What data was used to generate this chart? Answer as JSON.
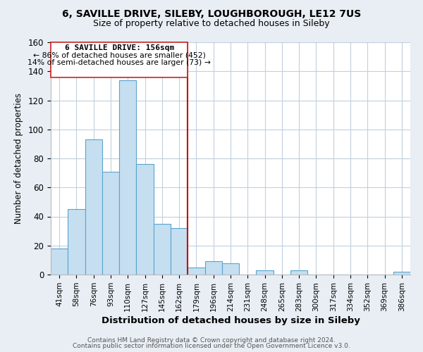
{
  "title1": "6, SAVILLE DRIVE, SILEBY, LOUGHBOROUGH, LE12 7US",
  "title2": "Size of property relative to detached houses in Sileby",
  "xlabel": "Distribution of detached houses by size in Sileby",
  "ylabel": "Number of detached properties",
  "bar_labels": [
    "41sqm",
    "58sqm",
    "76sqm",
    "93sqm",
    "110sqm",
    "127sqm",
    "145sqm",
    "162sqm",
    "179sqm",
    "196sqm",
    "214sqm",
    "231sqm",
    "248sqm",
    "265sqm",
    "283sqm",
    "300sqm",
    "317sqm",
    "334sqm",
    "352sqm",
    "369sqm",
    "386sqm"
  ],
  "bar_values": [
    18,
    45,
    93,
    71,
    134,
    76,
    35,
    32,
    5,
    9,
    8,
    0,
    3,
    0,
    3,
    0,
    0,
    0,
    0,
    0,
    2
  ],
  "bar_color": "#c5dff0",
  "bar_edge_color": "#5ba3cc",
  "ylim": [
    0,
    160
  ],
  "yticks": [
    0,
    20,
    40,
    60,
    80,
    100,
    120,
    140,
    160
  ],
  "vline_color": "#cc0000",
  "annotation_title": "6 SAVILLE DRIVE: 156sqm",
  "annotation_line1": "← 86% of detached houses are smaller (452)",
  "annotation_line2": "14% of semi-detached houses are larger (73) →",
  "footer1": "Contains HM Land Registry data © Crown copyright and database right 2024.",
  "footer2": "Contains public sector information licensed under the Open Government Licence v3.0.",
  "background_color": "#e8eef4",
  "plot_background": "#ffffff",
  "grid_color": "#c0d0de"
}
